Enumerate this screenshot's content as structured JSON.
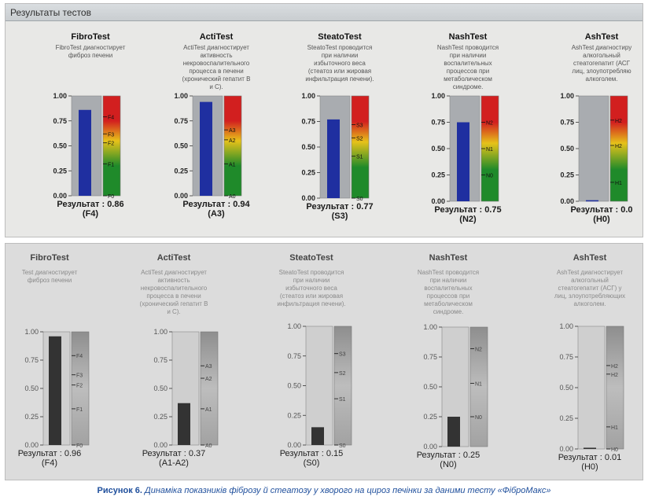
{
  "top_panel": {
    "header": "Результаты тестов",
    "tests": [
      {
        "title": "FibroTest",
        "desc": [
          "FibroTest диагностирует",
          "фиброз печени"
        ]
      },
      {
        "title": "ActiTest",
        "desc": [
          "ActiTest диагностирует",
          "активность",
          "некровоспалительного",
          "процесса в печени",
          "(хронический гепатит B",
          "и C)."
        ]
      },
      {
        "title": "SteatoTest",
        "desc": [
          "SteatoTest проводится",
          "при наличии",
          "избыточного веса",
          "(стеатоз или жировая",
          "инфильтрация печени)."
        ]
      },
      {
        "title": "NashTest",
        "desc": [
          "NashTest проводится",
          "при наличии",
          "воспалительных",
          "процессов при",
          "метаболическом",
          "синдроме."
        ]
      },
      {
        "title": "AshTest",
        "desc": [
          "AshTest диагностиру",
          "алкогольный",
          "стеатогепатит (АСГ",
          "лиц, злоупотребляю",
          "алкоголем."
        ]
      }
    ]
  },
  "bottom_panel": {
    "tests": [
      {
        "title": "FibroTest",
        "desc": [
          "Test диагностирует",
          "фиброз печени"
        ]
      },
      {
        "title": "ActiTest",
        "desc": [
          "ActiTest диагностирует",
          "активность",
          "некровоспалительного",
          "процесса в печени",
          "(хронический гепатит B",
          "и C)."
        ]
      },
      {
        "title": "SteatoTest",
        "desc": [
          "SteatoTest проводится",
          "при наличии",
          "избыточного веса",
          "(стеатоз или жировая",
          "инфильтрация печени)."
        ]
      },
      {
        "title": "NashTest",
        "desc": [
          "NashTest проводится",
          "при наличии",
          "воспалительных",
          "процессов при",
          "метаболическом",
          "синдроме."
        ]
      },
      {
        "title": "AshTest",
        "desc": [
          "AshTest диагностирует",
          "алкогольный",
          "стеатогепатит (АСГ) у",
          "лиц, злоупотребляющих",
          "алкоголем."
        ]
      }
    ]
  },
  "caption": {
    "label": "Рисунок 6.",
    "text": "Динаміка показників фіброзу й стеатозу у хворого на цироз печінки за даними тесту «ФіброМакс»"
  },
  "colors": {
    "bar_top": "#1f2fa0",
    "bar_bottom": "#333333",
    "track_top": "#a9acb0",
    "track_bottom": "#cfcfcf",
    "scale_red": "#d21f1f",
    "scale_yellow": "#e6c21a",
    "scale_green": "#1f8a2a",
    "caption_blue": "#1f4f9c"
  },
  "chart_data": [
    {
      "type": "bar",
      "panel": "top",
      "ylim": [
        0,
        1
      ],
      "yticks": [
        "0.00",
        "0.25",
        "0.50",
        "0.75",
        "1.00"
      ],
      "charts": [
        {
          "test": "FibroTest",
          "value": 0.86,
          "result_label": "Результат : 0.86",
          "stage": "(F4)",
          "markers": [
            {
              "label": "F4",
              "value": 0.79
            },
            {
              "label": "F3",
              "value": 0.62
            },
            {
              "label": "F2",
              "value": 0.53
            },
            {
              "label": "F1",
              "value": 0.32
            },
            {
              "label": "F0",
              "value": 0.0
            }
          ]
        },
        {
          "test": "ActiTest",
          "value": 0.94,
          "result_label": "Результат : 0.94",
          "stage": "(A3)",
          "markers": [
            {
              "label": "A3",
              "value": 0.66
            },
            {
              "label": "A2",
              "value": 0.56
            },
            {
              "label": "A1",
              "value": 0.32
            },
            {
              "label": "A0",
              "value": 0.0
            }
          ]
        },
        {
          "test": "SteatoTest",
          "value": 0.77,
          "result_label": "Результат : 0.77",
          "stage": "(S3)",
          "markers": [
            {
              "label": "S3",
              "value": 0.72
            },
            {
              "label": "S2",
              "value": 0.59
            },
            {
              "label": "S1",
              "value": 0.41
            },
            {
              "label": "S0",
              "value": 0.0
            }
          ]
        },
        {
          "test": "NashTest",
          "value": 0.75,
          "result_label": "Результат : 0.75",
          "stage": "(N2)",
          "markers": [
            {
              "label": "N2",
              "value": 0.75
            },
            {
              "label": "N1",
              "value": 0.5
            },
            {
              "label": "N0",
              "value": 0.25
            }
          ]
        },
        {
          "test": "AshTest",
          "value": 0.01,
          "result_label": "Результат : 0.0",
          "stage": "(H0)",
          "markers": [
            {
              "label": "H2",
              "value": 0.77
            },
            {
              "label": "H2",
              "value": 0.53
            },
            {
              "label": "H1",
              "value": 0.18
            }
          ]
        }
      ]
    },
    {
      "type": "bar",
      "panel": "bottom",
      "ylim": [
        0,
        1
      ],
      "yticks": [
        "0.00",
        "0.25",
        "0.50",
        "0.75",
        "1.00"
      ],
      "charts": [
        {
          "test": "FibroTest",
          "value": 0.96,
          "result_label": "Результат : 0.96",
          "stage": "(F4)",
          "markers": [
            {
              "label": "F4",
              "value": 0.79
            },
            {
              "label": "F3",
              "value": 0.62
            },
            {
              "label": "F2",
              "value": 0.53
            },
            {
              "label": "F1",
              "value": 0.32
            },
            {
              "label": "F0",
              "value": 0.0
            }
          ]
        },
        {
          "test": "ActiTest",
          "value": 0.37,
          "result_label": "Результат : 0.37",
          "stage": "(A1-A2)",
          "markers": [
            {
              "label": "A3",
              "value": 0.7
            },
            {
              "label": "A2",
              "value": 0.59
            },
            {
              "label": "A1",
              "value": 0.32
            },
            {
              "label": "A0",
              "value": 0.0
            }
          ]
        },
        {
          "test": "SteatoTest",
          "value": 0.15,
          "result_label": "Результат : 0.15",
          "stage": "(S0)",
          "markers": [
            {
              "label": "S3",
              "value": 0.77
            },
            {
              "label": "S2",
              "value": 0.61
            },
            {
              "label": "S1",
              "value": 0.39
            },
            {
              "label": "S0",
              "value": 0.0
            }
          ]
        },
        {
          "test": "NashTest",
          "value": 0.25,
          "result_label": "Результат : 0.25",
          "stage": "(N0)",
          "markers": [
            {
              "label": "N2",
              "value": 0.82
            },
            {
              "label": "N1",
              "value": 0.53
            },
            {
              "label": "N0",
              "value": 0.25
            }
          ]
        },
        {
          "test": "AshTest",
          "value": 0.01,
          "result_label": "Результат : 0.01",
          "stage": "(H0)",
          "markers": [
            {
              "label": "H2",
              "value": 0.68
            },
            {
              "label": "H2",
              "value": 0.61
            },
            {
              "label": "H1",
              "value": 0.18
            },
            {
              "label": "H0",
              "value": 0.0
            }
          ]
        }
      ]
    }
  ]
}
